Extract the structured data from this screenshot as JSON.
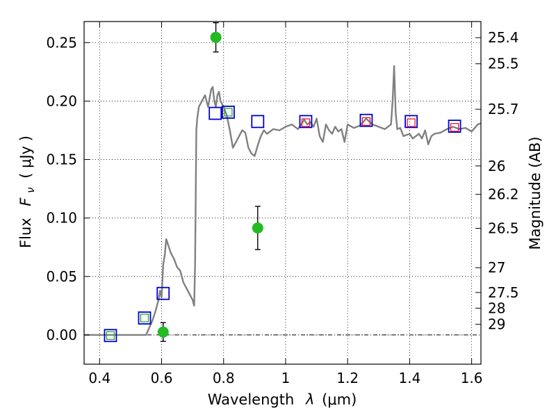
{
  "chart_data": {
    "type": "scatter",
    "xlabel_prefix": "Wavelength",
    "xlabel_symbol": "λ",
    "xlabel_unit": "(μm)",
    "ylabel_prefix": "Flux",
    "ylabel_symbol": "F",
    "ylabel_subscript": "ν",
    "ylabel_unit": "( μJy )",
    "y2label": "Magnitude (AB)",
    "xlim": [
      0.35,
      1.63
    ],
    "ylim": [
      -0.025,
      0.268
    ],
    "xticks": [
      0.4,
      0.6,
      0.8,
      1.0,
      1.2,
      1.4,
      1.6
    ],
    "xtick_labels": [
      "0.4",
      "0.6",
      "0.8",
      "1",
      "1.2",
      "1.4",
      "1.6"
    ],
    "yticks": [
      0.0,
      0.05,
      0.1,
      0.15,
      0.2,
      0.25
    ],
    "ytick_labels": [
      "0.00",
      "0.05",
      "0.10",
      "0.15",
      "0.20",
      "0.25"
    ],
    "mag_ticks": [
      {
        "flux": 0.2542,
        "label": "25.4"
      },
      {
        "flux": 0.2319,
        "label": "25.5"
      },
      {
        "flux": 0.193,
        "label": "25.7"
      },
      {
        "flux": 0.1445,
        "label": "26"
      },
      {
        "flux": 0.1202,
        "label": "26.2"
      },
      {
        "flux": 0.0912,
        "label": "26.5"
      },
      {
        "flux": 0.0575,
        "label": "27"
      },
      {
        "flux": 0.0363,
        "label": "27.5"
      },
      {
        "flux": 0.0229,
        "label": "28"
      },
      {
        "flux": 0.0091,
        "label": "29"
      }
    ],
    "grid": true,
    "colors": {
      "model": "#808080",
      "detections": "#22bb22",
      "model_photometry": "#0000cc",
      "secondary_squares_green": "#22aa22",
      "secondary_squares_red": "#ee1133",
      "errorbar": "#000000"
    },
    "series": [
      {
        "name": "model spectrum",
        "kind": "line",
        "x": [
          0.35,
          0.4,
          0.45,
          0.5,
          0.53,
          0.55,
          0.57,
          0.58,
          0.59,
          0.595,
          0.6,
          0.605,
          0.61,
          0.615,
          0.62,
          0.63,
          0.64,
          0.65,
          0.66,
          0.67,
          0.68,
          0.69,
          0.7,
          0.705,
          0.708,
          0.712,
          0.715,
          0.72,
          0.73,
          0.74,
          0.75,
          0.76,
          0.765,
          0.77,
          0.775,
          0.78,
          0.785,
          0.79,
          0.8,
          0.81,
          0.82,
          0.83,
          0.84,
          0.85,
          0.86,
          0.87,
          0.88,
          0.89,
          0.9,
          0.91,
          0.92,
          0.93,
          0.94,
          0.96,
          0.98,
          1.0,
          1.02,
          1.04,
          1.06,
          1.07,
          1.08,
          1.09,
          1.1,
          1.11,
          1.12,
          1.13,
          1.14,
          1.15,
          1.16,
          1.17,
          1.18,
          1.19,
          1.2,
          1.22,
          1.24,
          1.26,
          1.28,
          1.3,
          1.32,
          1.34,
          1.345,
          1.35,
          1.355,
          1.36,
          1.37,
          1.38,
          1.4,
          1.41,
          1.42,
          1.43,
          1.44,
          1.45,
          1.46,
          1.47,
          1.48,
          1.5,
          1.52,
          1.54,
          1.56,
          1.58,
          1.6,
          1.62,
          1.63
        ],
        "y": [
          0.0,
          0.0,
          0.0,
          0.0,
          0.0,
          0.0,
          0.012,
          0.02,
          0.03,
          0.038,
          0.032,
          0.06,
          0.068,
          0.082,
          0.078,
          0.07,
          0.065,
          0.058,
          0.055,
          0.045,
          0.04,
          0.035,
          0.03,
          0.025,
          0.06,
          0.175,
          0.185,
          0.195,
          0.2,
          0.205,
          0.195,
          0.21,
          0.212,
          0.2,
          0.195,
          0.205,
          0.208,
          0.2,
          0.195,
          0.188,
          0.175,
          0.16,
          0.165,
          0.17,
          0.175,
          0.173,
          0.16,
          0.155,
          0.153,
          0.162,
          0.17,
          0.175,
          0.172,
          0.176,
          0.175,
          0.178,
          0.18,
          0.176,
          0.184,
          0.18,
          0.182,
          0.178,
          0.185,
          0.17,
          0.165,
          0.18,
          0.175,
          0.172,
          0.178,
          0.174,
          0.176,
          0.165,
          0.18,
          0.177,
          0.179,
          0.185,
          0.18,
          0.178,
          0.176,
          0.18,
          0.2,
          0.23,
          0.19,
          0.176,
          0.177,
          0.17,
          0.172,
          0.168,
          0.17,
          0.172,
          0.168,
          0.175,
          0.163,
          0.17,
          0.172,
          0.173,
          0.176,
          0.178,
          0.176,
          0.177,
          0.174,
          0.18,
          0.181
        ]
      },
      {
        "name": "detections",
        "kind": "points-with-errors",
        "x": [
          0.605,
          0.775,
          0.91
        ],
        "y": [
          0.0025,
          0.2545,
          0.0915
        ],
        "yerr": [
          0.008,
          0.0125,
          0.0185
        ]
      },
      {
        "name": "model photometry",
        "kind": "open-squares",
        "x": [
          0.435,
          0.545,
          0.605,
          0.773,
          0.815,
          0.91,
          1.065,
          1.26,
          1.405,
          1.545
        ],
        "y": [
          -0.0005,
          0.0145,
          0.0355,
          0.1895,
          0.1905,
          0.1825,
          0.1825,
          0.1835,
          0.1825,
          0.1785
        ]
      },
      {
        "name": "observed photometry (green)",
        "kind": "small-open-squares",
        "x": [
          0.435,
          0.545,
          0.815
        ],
        "y": [
          -0.0005,
          0.0145,
          0.1905
        ]
      },
      {
        "name": "observed photometry (red)",
        "kind": "small-open-squares",
        "x": [
          1.065,
          1.26,
          1.405,
          1.545
        ],
        "y": [
          0.1815,
          0.1825,
          0.1815,
          0.1775
        ]
      }
    ]
  }
}
